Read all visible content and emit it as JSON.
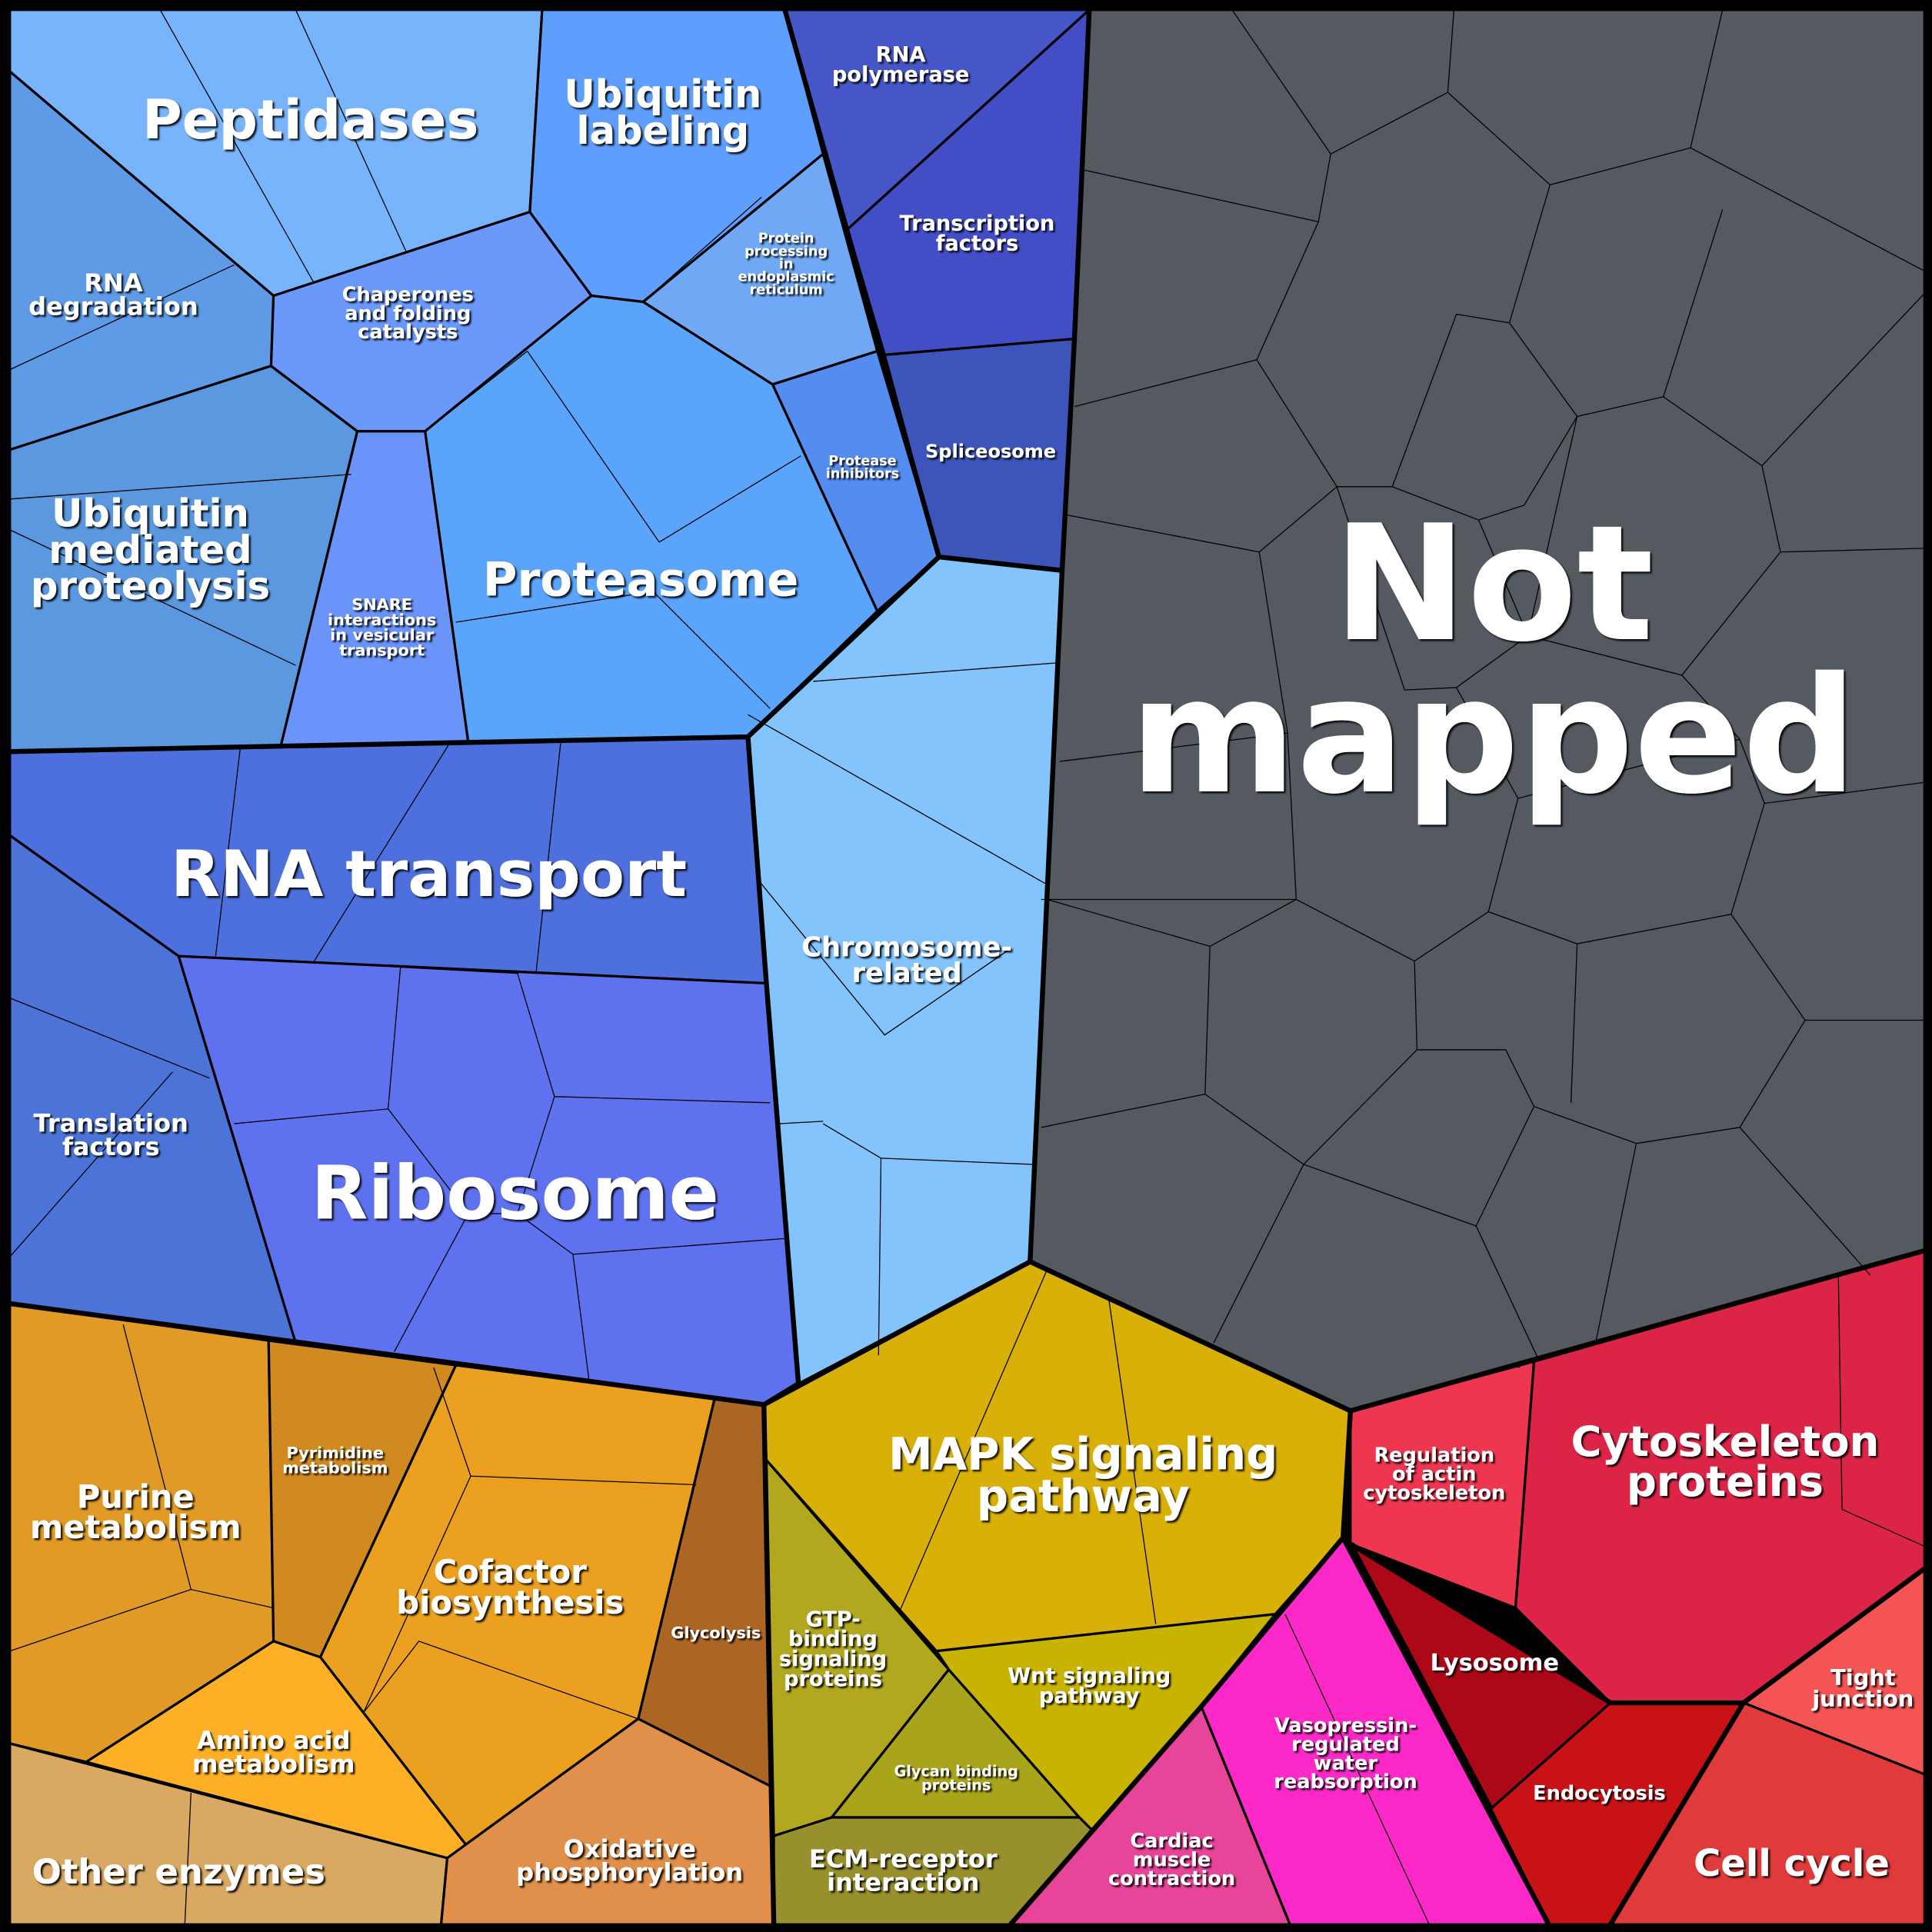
{
  "cells": {
    "peptidases": {
      "lines": [
        "Peptidases"
      ],
      "color": "#78b4fc"
    },
    "rna_degradation": {
      "lines": [
        "RNA",
        "degradation"
      ],
      "color": "#5e9ae6"
    },
    "ubiquitin_mediated": {
      "lines": [
        "Ubiquitin",
        "mediated",
        "proteolysis"
      ],
      "color": "#5b98e0"
    },
    "chaperones": {
      "lines": [
        "Chaperones",
        "and folding",
        "catalysts"
      ],
      "color": "#6a98fb"
    },
    "snare": {
      "lines": [
        "SNARE",
        "interactions",
        "in vesicular",
        "transport"
      ],
      "color": "#6a94fa"
    },
    "ubiquitin_labeling": {
      "lines": [
        "Ubiquitin",
        "labeling"
      ],
      "color": "#5e9efc"
    },
    "protein_processing_er": {
      "lines": [
        "Protein",
        "processing",
        "in",
        "endoplasmic",
        "reticulum"
      ],
      "color": "#70a8f6"
    },
    "protease_inhibitors": {
      "lines": [
        "Protease",
        "inhibitors"
      ],
      "color": "#558cf0"
    },
    "proteasome": {
      "lines": [
        "Proteasome"
      ],
      "color": "#5aa4fb"
    },
    "rna_polymerase": {
      "lines": [
        "RNA",
        "polymerase"
      ],
      "color": "#4656c6"
    },
    "transcription_factors": {
      "lines": [
        "Transcription",
        "factors"
      ],
      "color": "#434ec6"
    },
    "spliceosome": {
      "lines": [
        "Spliceosome"
      ],
      "color": "#3d54bb"
    },
    "chromosome_related": {
      "lines": [
        "Chromosome-",
        "related"
      ],
      "color": "#84c4fc"
    },
    "rna_transport": {
      "lines": [
        "RNA transport"
      ],
      "color": "#4d70de"
    },
    "translation_factors": {
      "lines": [
        "Translation",
        "factors"
      ],
      "color": "#4c74d8"
    },
    "ribosome": {
      "lines": [
        "Ribosome"
      ],
      "color": "#5e72f0"
    },
    "purine_metabolism": {
      "lines": [
        "Purine",
        "metabolism"
      ],
      "color": "#e29a26"
    },
    "pyrimidine_metabolism": {
      "lines": [
        "Pyrimidine",
        "metabolism"
      ],
      "color": "#d08a20"
    },
    "cofactor_biosynthesis": {
      "lines": [
        "Cofactor",
        "biosynthesis"
      ],
      "color": "#eba020"
    },
    "glycolysis": {
      "lines": [
        "Glycolysis"
      ],
      "color": "#ac6624"
    },
    "amino_acid_metabolism": {
      "lines": [
        "Amino acid",
        "metabolism"
      ],
      "color": "#fdb026"
    },
    "other_enzymes": {
      "lines": [
        "Other enzymes"
      ],
      "color": "#d9a862"
    },
    "oxidative_phosphorylation": {
      "lines": [
        "Oxidative",
        "phosphorylation"
      ],
      "color": "#e0904a"
    },
    "mapk_signaling": {
      "lines": [
        "MAPK signaling",
        "pathway"
      ],
      "color": "#d8b008"
    },
    "gtp_binding": {
      "lines": [
        "GTP-",
        "binding",
        "signaling",
        "proteins"
      ],
      "color": "#b2a820"
    },
    "glycan_binding": {
      "lines": [
        "Glycan binding",
        "proteins"
      ],
      "color": "#a8a41c"
    },
    "wnt_signaling": {
      "lines": [
        "Wnt signaling",
        "pathway"
      ],
      "color": "#c8b400"
    },
    "ecm_receptor": {
      "lines": [
        "ECM-receptor",
        "interaction"
      ],
      "color": "#98902c"
    },
    "cardiac_muscle": {
      "lines": [
        "Cardiac",
        "muscle",
        "contraction"
      ],
      "color": "#e8449a"
    },
    "vasopressin": {
      "lines": [
        "Vasopressin-",
        "regulated",
        "water",
        "reabsorption"
      ],
      "color": "#fc28c8"
    },
    "regulation_actin": {
      "lines": [
        "Regulation",
        "of actin",
        "cytoskeleton"
      ],
      "color": "#ee3650"
    },
    "cytoskeleton_proteins": {
      "lines": [
        "Cytoskeleton",
        "proteins"
      ],
      "color": "#dc2446"
    },
    "lysosome": {
      "lines": [
        "Lysosome"
      ],
      "color": "#ac0818"
    },
    "endocytosis": {
      "lines": [
        "Endocytosis"
      ],
      "color": "#c81216"
    },
    "tight_junction": {
      "lines": [
        "Tight",
        "junction"
      ],
      "color": "#f45454"
    },
    "cell_cycle": {
      "lines": [
        "Cell cycle"
      ],
      "color": "#e03a3a"
    },
    "not_mapped": {
      "lines": [
        "Not",
        "mapped"
      ],
      "color": "#555a60"
    }
  }
}
